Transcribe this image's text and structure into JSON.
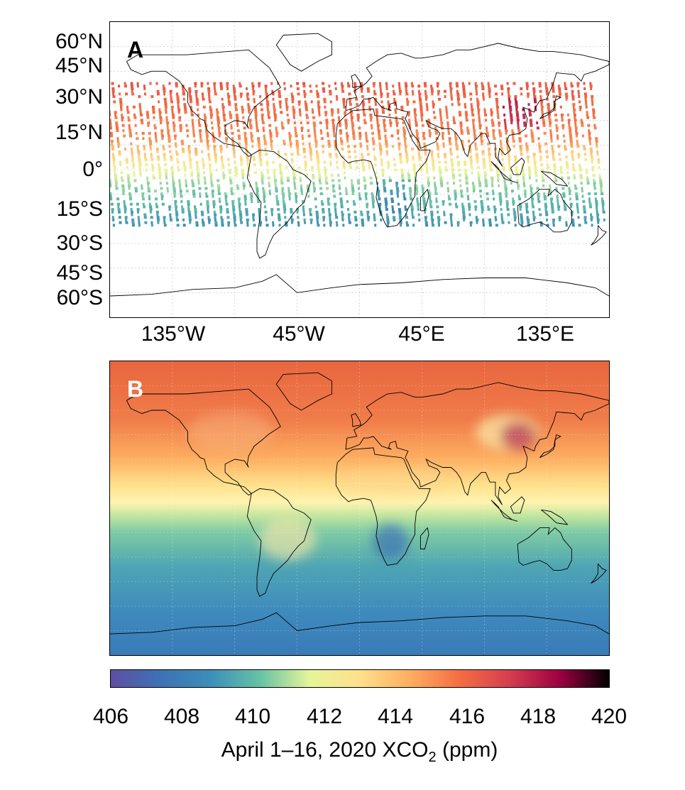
{
  "panel_a": {
    "letter": "A",
    "lat_labels": [
      "60°N",
      "45°N",
      "30°N",
      "15°N",
      "0°",
      "15°S",
      "30°S",
      "45°S",
      "60°S"
    ],
    "lon_labels": [
      "135°W",
      "45°W",
      "45°E",
      "135°E"
    ]
  },
  "panel_b": {
    "letter": "B"
  },
  "colorbar": {
    "ticks": [
      "406",
      "408",
      "410",
      "412",
      "414",
      "416",
      "418",
      "420"
    ],
    "title_prefix": "April 1–16, 2020 XCO",
    "title_sub": "2",
    "title_suffix": " (ppm)",
    "min": 406,
    "max": 420,
    "stops": [
      "#5e4fa2",
      "#3d72b5",
      "#3c8eb8",
      "#66c2a5",
      "#e6f598",
      "#fee08b",
      "#fdae61",
      "#f46d43",
      "#d53e4f",
      "#9e0142",
      "#000000"
    ]
  }
}
